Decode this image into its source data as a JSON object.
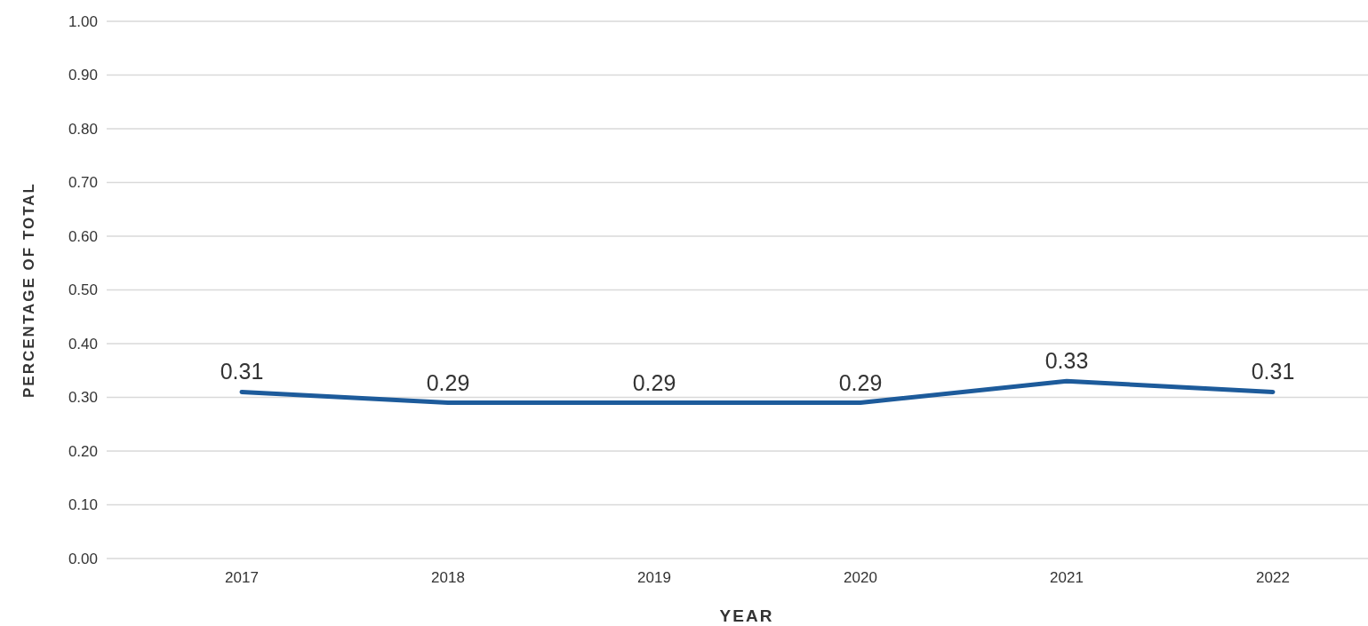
{
  "chart_data": {
    "type": "line",
    "xlabel": "YEAR",
    "ylabel": "PERCENTAGE OF TOTAL",
    "categories": [
      "2017",
      "2018",
      "2019",
      "2020",
      "2021",
      "2022"
    ],
    "series": [
      {
        "color": "#1d5b9b",
        "values": [
          0.31,
          0.29,
          0.29,
          0.29,
          0.33,
          0.31
        ]
      }
    ],
    "ylim": [
      0,
      1
    ],
    "yticks": [
      {
        "value": 0,
        "label": "0.00"
      },
      {
        "value": 0.1,
        "label": "0.10"
      },
      {
        "value": 0.2,
        "label": "0.20"
      },
      {
        "value": 0.3,
        "label": "0.30"
      },
      {
        "value": 0.4,
        "label": "0.40"
      },
      {
        "value": 0.5,
        "label": "0.50"
      },
      {
        "value": 0.6,
        "label": "0.60"
      },
      {
        "value": 0.7,
        "label": "0.70"
      },
      {
        "value": 0.8,
        "label": "0.80"
      },
      {
        "value": 0.9,
        "label": "0.90"
      },
      {
        "value": 1,
        "label": "1.00"
      }
    ],
    "grid": "y",
    "data_labels": true,
    "line_style": "solid",
    "marker": "none"
  }
}
